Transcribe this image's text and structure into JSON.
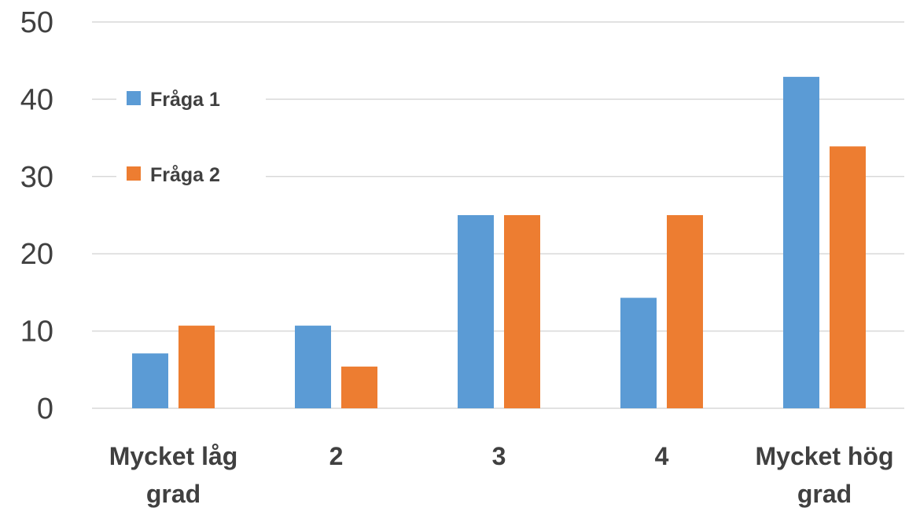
{
  "chart_data": {
    "type": "bar",
    "title": "",
    "xlabel": "",
    "ylabel": "",
    "categories": [
      [
        "Mycket låg",
        "grad"
      ],
      [
        "2"
      ],
      [
        "3"
      ],
      [
        "4"
      ],
      [
        "Mycket hög",
        "grad"
      ]
    ],
    "series": [
      {
        "name": "Fråga 1",
        "color": "#5b9bd5",
        "values": [
          7.1,
          10.7,
          25.0,
          14.3,
          42.9
        ]
      },
      {
        "name": "Fråga 2",
        "color": "#ed7d31",
        "values": [
          10.7,
          5.4,
          25.0,
          25.0,
          33.9
        ]
      }
    ],
    "ylim": [
      0,
      50
    ],
    "yticks": [
      0,
      10,
      20,
      30,
      40,
      50
    ],
    "grid": true,
    "legend_position": "top-left"
  }
}
